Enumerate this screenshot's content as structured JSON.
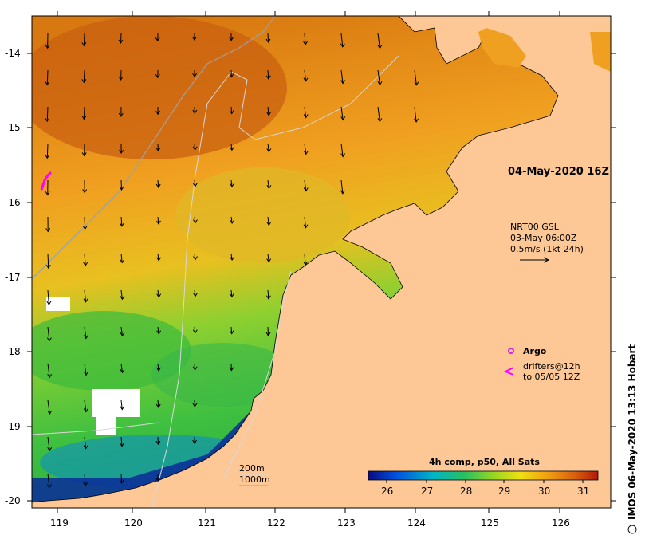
{
  "map": {
    "y_ticks": [
      "-14",
      "-15",
      "-16",
      "-17",
      "-18",
      "-19",
      "-20"
    ],
    "x_ticks": [
      "119",
      "120",
      "121",
      "122",
      "123",
      "124",
      "125",
      "126"
    ],
    "timestamp": "04-May-2020 16Z",
    "current_source": "NRT00 GSL",
    "current_time": "03-May 06:00Z",
    "current_scale": "0.5m/s (1kt 24h)",
    "legend_argo": "Argo",
    "legend_drifters_line1": "drifters@12h",
    "legend_drifters_line2": "to 05/05 12Z",
    "contour_200": "200m",
    "contour_1000": "1000m",
    "colorbar_title": "4h comp, p50, All Sats",
    "colorbar_ticks": [
      "26",
      "27",
      "28",
      "29",
      "30",
      "31"
    ],
    "credit": "IMOS 06-May-2020 13:13 Hobart",
    "colors": {
      "land": "#fdc896",
      "sst_warm": "#d2690a",
      "sst_mid": "#f2a21e",
      "sst_cool": "#52c23a",
      "sst_cold": "#0b2a9a",
      "argo": "#e020e0",
      "drifter": "#ff00ff"
    }
  }
}
